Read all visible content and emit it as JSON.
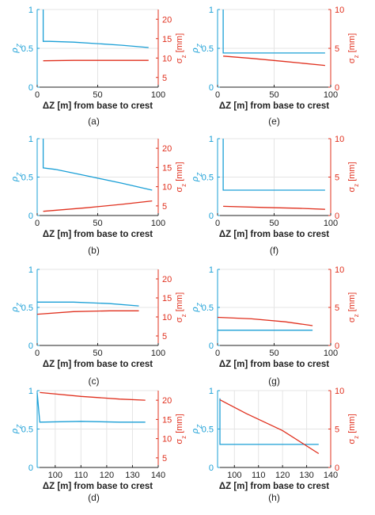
{
  "colors": {
    "rho": "#1a9fd6",
    "sigma": "#e0301e",
    "axis": "#222222",
    "grid": "#e4e4e4"
  },
  "chart_data": [
    {
      "id": "a",
      "type": "line",
      "caption": "(a)",
      "xlabel": "ΔZ [m] from base to crest",
      "left_label": "ρ_Z",
      "right_label": "σ_z [mm]",
      "grid": true,
      "xlim": [
        0,
        100
      ],
      "xticks": [
        0,
        50,
        100
      ],
      "left_ylim": [
        0,
        1
      ],
      "left_yticks": [
        0,
        0.5,
        1
      ],
      "right_ylim": [
        2.5,
        22.5
      ],
      "right_yticks": [
        5,
        10,
        15,
        20
      ],
      "series": [
        {
          "axis": "left",
          "x": [
            5,
            5,
            10,
            30,
            50,
            70,
            92
          ],
          "y": [
            1,
            0.59,
            0.59,
            0.58,
            0.56,
            0.54,
            0.51
          ]
        },
        {
          "axis": "right",
          "x": [
            5,
            30,
            60,
            92
          ],
          "y": [
            9.3,
            9.4,
            9.4,
            9.4
          ]
        }
      ]
    },
    {
      "id": "e",
      "type": "line",
      "caption": "(e)",
      "xlabel": "ΔZ [m] from base to crest",
      "left_label": "ρ_Z",
      "right_label": "σ_z [mm]",
      "grid": true,
      "xlim": [
        0,
        100
      ],
      "xticks": [
        0,
        50,
        100
      ],
      "left_ylim": [
        0,
        1
      ],
      "left_yticks": [
        0,
        0.5,
        1
      ],
      "right_ylim": [
        0,
        10
      ],
      "right_yticks": [
        0,
        5,
        10
      ],
      "series": [
        {
          "axis": "left",
          "x": [
            5,
            5,
            95
          ],
          "y": [
            1,
            0.44,
            0.44
          ]
        },
        {
          "axis": "right",
          "x": [
            5,
            30,
            60,
            95
          ],
          "y": [
            4.0,
            3.7,
            3.3,
            2.8
          ]
        }
      ]
    },
    {
      "id": "b",
      "type": "line",
      "caption": "(b)",
      "xlabel": "ΔZ [m] from base to crest",
      "left_label": "ρ_Z",
      "right_label": "σ_z [mm]",
      "grid": true,
      "xlim": [
        0,
        100
      ],
      "xticks": [
        0,
        50,
        100
      ],
      "left_ylim": [
        0,
        1
      ],
      "left_yticks": [
        0,
        0.5,
        1
      ],
      "right_ylim": [
        2.5,
        22.5
      ],
      "right_yticks": [
        5,
        10,
        15,
        20
      ],
      "series": [
        {
          "axis": "left",
          "x": [
            5,
            5,
            15,
            40,
            70,
            95
          ],
          "y": [
            1,
            0.62,
            0.6,
            0.52,
            0.42,
            0.33
          ]
        },
        {
          "axis": "right",
          "x": [
            5,
            40,
            70,
            95
          ],
          "y": [
            3.6,
            4.5,
            5.4,
            6.3
          ]
        }
      ]
    },
    {
      "id": "f",
      "type": "line",
      "caption": "(f)",
      "xlabel": "ΔZ [m] from base to crest",
      "left_label": "ρ_Z",
      "right_label": "σ_z [mm]",
      "grid": true,
      "xlim": [
        0,
        100
      ],
      "xticks": [
        0,
        50,
        100
      ],
      "left_ylim": [
        0,
        1
      ],
      "left_yticks": [
        0,
        0.5,
        1
      ],
      "right_ylim": [
        0,
        10
      ],
      "right_yticks": [
        0,
        5,
        10
      ],
      "series": [
        {
          "axis": "left",
          "x": [
            5,
            5,
            95
          ],
          "y": [
            1,
            0.33,
            0.33
          ]
        },
        {
          "axis": "right",
          "x": [
            5,
            40,
            70,
            95
          ],
          "y": [
            1.2,
            1.05,
            0.95,
            0.8
          ]
        }
      ]
    },
    {
      "id": "c",
      "type": "line",
      "caption": "(c)",
      "xlabel": "ΔZ [m] from base to crest",
      "left_label": "ρ_Z",
      "right_label": "σ_z [mm]",
      "grid": true,
      "xlim": [
        0,
        100
      ],
      "xticks": [
        0,
        50,
        100
      ],
      "left_ylim": [
        0,
        1
      ],
      "left_yticks": [
        0,
        0.5,
        1
      ],
      "right_ylim": [
        2.5,
        22.5
      ],
      "right_yticks": [
        5,
        10,
        15,
        20
      ],
      "series": [
        {
          "axis": "left",
          "x": [
            0,
            30,
            60,
            84
          ],
          "y": [
            0.57,
            0.57,
            0.55,
            0.52
          ]
        },
        {
          "axis": "right",
          "x": [
            0,
            30,
            60,
            84
          ],
          "y": [
            10.7,
            11.4,
            11.6,
            11.6
          ]
        }
      ]
    },
    {
      "id": "g",
      "type": "line",
      "caption": "(g)",
      "xlabel": "ΔZ [m] from base to crest",
      "left_label": "ρ_Z",
      "right_label": "σ_z [mm]",
      "grid": true,
      "xlim": [
        0,
        100
      ],
      "xticks": [
        0,
        50,
        100
      ],
      "left_ylim": [
        0,
        1
      ],
      "left_yticks": [
        0,
        0.5,
        1
      ],
      "right_ylim": [
        0,
        10
      ],
      "right_yticks": [
        0,
        5,
        10
      ],
      "series": [
        {
          "axis": "left",
          "x": [
            0,
            84
          ],
          "y": [
            0.2,
            0.2
          ]
        },
        {
          "axis": "right",
          "x": [
            0,
            30,
            60,
            84
          ],
          "y": [
            3.7,
            3.5,
            3.1,
            2.6
          ]
        }
      ]
    },
    {
      "id": "d",
      "type": "line",
      "caption": "(d)",
      "xlabel": "ΔZ [m] from base to crest",
      "left_label": "ρ_Z",
      "right_label": "σ_z [mm]",
      "grid": true,
      "xlim": [
        93,
        140
      ],
      "xticks": [
        100,
        110,
        120,
        130,
        140
      ],
      "left_ylim": [
        0,
        1
      ],
      "left_yticks": [
        0,
        0.5,
        1
      ],
      "right_ylim": [
        2.5,
        22.5
      ],
      "right_yticks": [
        5,
        10,
        15,
        20
      ],
      "series": [
        {
          "axis": "left",
          "x": [
            93,
            94,
            110,
            125,
            135
          ],
          "y": [
            0.97,
            0.59,
            0.6,
            0.59,
            0.59
          ]
        },
        {
          "axis": "right",
          "x": [
            94,
            110,
            125,
            135
          ],
          "y": [
            22.0,
            21.0,
            20.3,
            20.0
          ]
        }
      ]
    },
    {
      "id": "h",
      "type": "line",
      "caption": "(h)",
      "xlabel": "ΔZ [m] from base to crest",
      "left_label": "ρ_Z",
      "right_label": "σ_z [mm]",
      "grid": true,
      "xlim": [
        93,
        140
      ],
      "xticks": [
        100,
        110,
        120,
        130,
        140
      ],
      "left_ylim": [
        0,
        1
      ],
      "left_yticks": [
        0,
        0.5,
        1
      ],
      "right_ylim": [
        0,
        10
      ],
      "right_yticks": [
        0,
        5,
        10
      ],
      "series": [
        {
          "axis": "left",
          "x": [
            94,
            94,
            110,
            125,
            135
          ],
          "y": [
            0.9,
            0.3,
            0.3,
            0.3,
            0.3
          ]
        },
        {
          "axis": "right",
          "x": [
            94,
            105,
            120,
            135
          ],
          "y": [
            8.8,
            7.0,
            4.8,
            1.8
          ]
        }
      ]
    }
  ]
}
